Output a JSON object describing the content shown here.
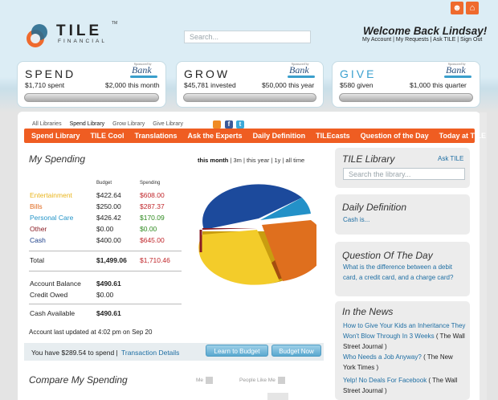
{
  "header": {
    "logo_text": "TILE",
    "logo_tm": "TM",
    "logo_sub": "FINANCIAL",
    "search_placeholder": "Search...",
    "welcome": "Welcome Back Lindsay!",
    "account_links": "My Account | My Requests | Ask TILE | Sign Out"
  },
  "cards": [
    {
      "title": "SPEND",
      "color": "#222222",
      "left": "$1,710 spent",
      "right": "$2,000 this month",
      "bank": "Bank",
      "bank_small": "Sponsored by"
    },
    {
      "title": "GROW",
      "color": "#222222",
      "left": "$45,781 invested",
      "right": "$50,000 this year",
      "bank": "Bank",
      "bank_small": "Sponsored by"
    },
    {
      "title": "GIVE",
      "color": "#3aa0cf",
      "left": "$580 given",
      "right": "$1,000 this quarter",
      "bank": "Bank",
      "bank_small": "Sponsored by"
    }
  ],
  "subtabs": [
    "All Libraries",
    "Spend Library",
    "Grow Library",
    "Give Library"
  ],
  "nav": [
    "Spend Library",
    "TILE Cool",
    "Translations",
    "Ask the Experts",
    "Daily Definition",
    "TILEcasts",
    "Question of the Day",
    "Today at TILE"
  ],
  "spending": {
    "title": "My Spending",
    "period": {
      "active": "this month",
      "others": " | 3m | this year | 1y | all time"
    },
    "col_budget": "Budget",
    "col_spending": "Spending",
    "rows": [
      {
        "label": "Entertainment",
        "color": "#e9b51d",
        "budget": "$422.64",
        "spending": "$608.00",
        "scolor": "#c0262b"
      },
      {
        "label": "Bills",
        "color": "#e06a1f",
        "budget": "$250.00",
        "spending": "$287.37",
        "scolor": "#c0262b"
      },
      {
        "label": "Personal Care",
        "color": "#2595c8",
        "budget": "$426.42",
        "spending": "$170.09",
        "scolor": "#2e8a1f"
      },
      {
        "label": "Other",
        "color": "#8a1c24",
        "budget": "$0.00",
        "spending": "$0.00",
        "scolor": "#2e8a1f"
      },
      {
        "label": "Cash",
        "color": "#1c3f8a",
        "budget": "$400.00",
        "spending": "$645.00",
        "scolor": "#c0262b"
      }
    ],
    "total_label": "Total",
    "total_budget": "$1,499.06",
    "total_spending": "$1,710.46",
    "account_balance_label": "Account Balance",
    "account_balance": "$490.61",
    "credit_owed_label": "Credit Owed",
    "credit_owed": "$0.00",
    "cash_available_label": "Cash Available",
    "cash_available": "$490.61",
    "updated": "Account last updated at 4:02 pm on Sep 20",
    "to_spend": "You have $289.54 to spend  |",
    "transaction_details": "Transaction Details",
    "learn_btn": "Learn to Budget",
    "budget_btn": "Budget Now"
  },
  "compare": {
    "title": "Compare My Spending",
    "me": "Me",
    "people": "People Like Me"
  },
  "sidebar": {
    "library_title": "TILE Library",
    "ask_tile": "Ask TILE",
    "library_placeholder": "Search the library...",
    "definition_title": "Daily Definition",
    "definition_link": "Cash is...",
    "question_title": "Question Of The Day",
    "question_link": "What is the difference between a debit card, a credit card, and a charge card?",
    "news_title": "In the News",
    "news": [
      {
        "link": "How to Give Your Kids an Inheritance They Won't Blow Through In 3 Weeks",
        "src": " ( The Wall Street Journal )"
      },
      {
        "link": "Who Needs a Job Anyway?",
        "src": " ( The New York Times )"
      },
      {
        "link": "Yelp! No Deals For Facebook",
        "src": " ( The Wall Street Journal )"
      }
    ]
  }
}
